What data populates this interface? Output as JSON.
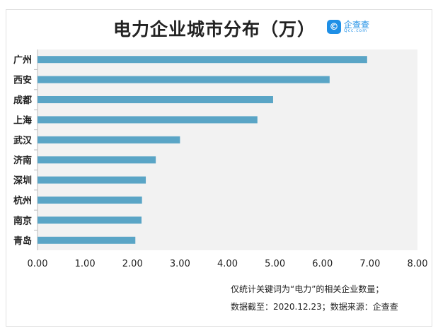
{
  "chart_data": {
    "type": "bar",
    "orientation": "horizontal",
    "title": "电力企业城市分布（万）",
    "categories": [
      "广州",
      "西安",
      "成都",
      "上海",
      "武汉",
      "济南",
      "深圳",
      "杭州",
      "南京",
      "青岛"
    ],
    "values": [
      6.94,
      6.15,
      4.96,
      4.63,
      3.0,
      2.49,
      2.28,
      2.2,
      2.19,
      2.06
    ],
    "xlim": [
      0,
      8
    ],
    "xticks": [
      "0.00",
      "1.00",
      "2.00",
      "3.00",
      "4.00",
      "5.00",
      "6.00",
      "7.00",
      "8.00"
    ],
    "xlabel": "",
    "ylabel": "",
    "grid": false,
    "bar_color": "#5aa5c6",
    "plot_background": "#f2f2f2"
  },
  "logo": {
    "icon": "qcc-logo-icon",
    "text_cn": "企查查",
    "text_en": "Qcc.com"
  },
  "notes": [
    "仅统计关键词为“电力”的相关企业数量；",
    "数据截至：2020.12.23；数据来源：企查查"
  ]
}
